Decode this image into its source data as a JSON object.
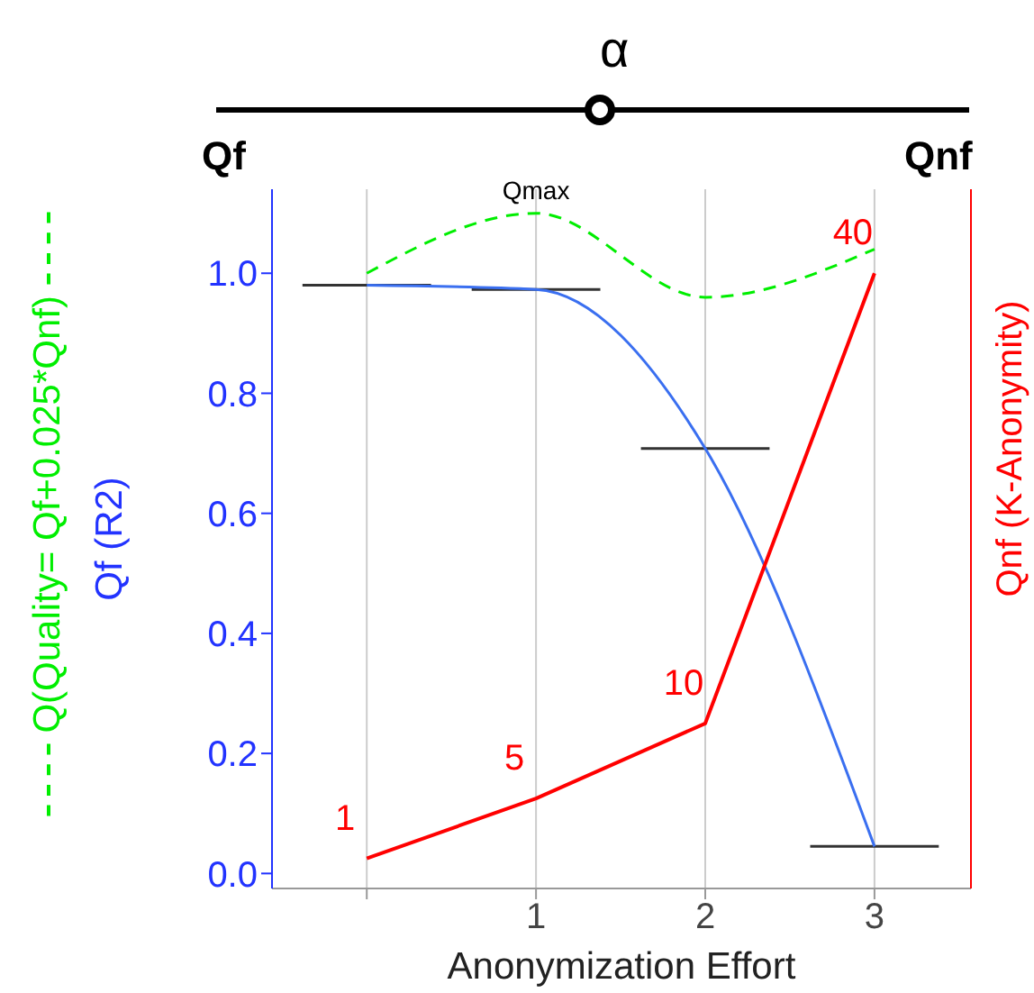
{
  "chart_data": {
    "type": "line",
    "xlabel": "Anonymization Effort",
    "ylabel": "Qf (R2)",
    "y2label": "Qnf (K-Anonymity)",
    "x": [
      0,
      1,
      2,
      3
    ],
    "series": [
      {
        "name": "Q(Quality= Qf+0.025*Qnf)",
        "color": "#00ee00",
        "values": [
          1.0,
          1.1,
          0.96,
          1.04
        ],
        "line_style": "dashed"
      },
      {
        "color": "#3a6ff0",
        "values": [
          0.98,
          0.973,
          0.708,
          0.045
        ],
        "xerrors": [
          0.38,
          0.38,
          0.38,
          0.38
        ]
      },
      {
        "color": "#ff0000",
        "values": [
          1,
          5,
          10,
          40
        ],
        "axis": "y2",
        "data_labels": true
      }
    ],
    "xlim": [
      -0.56,
      3.57
    ],
    "xticks": [
      {
        "value": 0,
        "label": null
      },
      1,
      2,
      3
    ],
    "ylim": [
      -0.025,
      1.14
    ],
    "yticks": [
      {
        "value": 0,
        "label": "0.0"
      },
      {
        "value": 0.2,
        "label": "0.2"
      },
      {
        "value": 0.4,
        "label": "0.4"
      },
      {
        "value": 0.6,
        "label": "0.6"
      },
      {
        "value": 0.8,
        "label": "0.8"
      },
      {
        "value": 1,
        "label": "1.0"
      }
    ],
    "y2lim": [
      -1,
      45.6
    ],
    "grid": "x",
    "legend": "left",
    "marker": "none",
    "annotations": [
      {
        "text": "Qmax",
        "x": 1,
        "y": 1.1
      },
      "α",
      "Qf",
      "Qnf"
    ]
  }
}
